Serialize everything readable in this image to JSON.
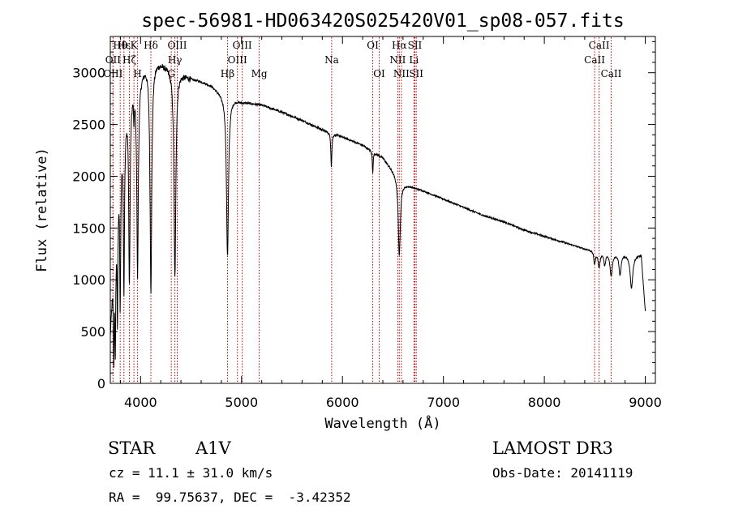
{
  "chart_data": {
    "type": "line",
    "title": "spec-56981-HD063420S025420V01_sp08-057.fits",
    "xlabel": "Wavelength (Å)",
    "ylabel": "Flux (relative)",
    "xlim": [
      3700,
      9100
    ],
    "ylim": [
      0,
      3350
    ],
    "x_ticks": [
      4000,
      5000,
      6000,
      7000,
      8000,
      9000
    ],
    "y_ticks": [
      0,
      500,
      1000,
      1500,
      2000,
      2500,
      3000
    ],
    "line_color": "#000000",
    "marker_color": "#c00000",
    "continuum": [
      [
        3700,
        500
      ],
      [
        3720,
        950
      ],
      [
        3750,
        1450
      ],
      [
        3780,
        2050
      ],
      [
        3820,
        2450
      ],
      [
        3850,
        2650
      ],
      [
        3880,
        2780
      ],
      [
        3920,
        2880
      ],
      [
        3960,
        2950
      ],
      [
        4000,
        3000
      ],
      [
        4050,
        3080
      ],
      [
        4100,
        3100
      ],
      [
        4150,
        3110
      ],
      [
        4200,
        3100
      ],
      [
        4300,
        3050
      ],
      [
        4400,
        3000
      ],
      [
        4500,
        2950
      ],
      [
        4600,
        2920
      ],
      [
        4700,
        2880
      ],
      [
        4800,
        2800
      ],
      [
        4900,
        2760
      ],
      [
        5000,
        2720
      ],
      [
        5200,
        2690
      ],
      [
        5400,
        2620
      ],
      [
        5600,
        2540
      ],
      [
        5800,
        2450
      ],
      [
        6000,
        2380
      ],
      [
        6200,
        2300
      ],
      [
        6400,
        2180
      ],
      [
        6600,
        1930
      ],
      [
        6800,
        1860
      ],
      [
        7000,
        1780
      ],
      [
        7200,
        1700
      ],
      [
        7400,
        1620
      ],
      [
        7600,
        1560
      ],
      [
        7800,
        1480
      ],
      [
        8000,
        1420
      ],
      [
        8200,
        1360
      ],
      [
        8400,
        1300
      ],
      [
        8600,
        1270
      ],
      [
        8800,
        1250
      ],
      [
        8960,
        1240
      ],
      [
        9000,
        700
      ]
    ],
    "absorption_features": [
      {
        "center": 3735,
        "depth": 900,
        "width": 5
      },
      {
        "center": 3750,
        "depth": 1000,
        "width": 5
      },
      {
        "center": 3771,
        "depth": 1200,
        "width": 5
      },
      {
        "center": 3798,
        "depth": 1400,
        "width": 6
      },
      {
        "center": 3835,
        "depth": 1600,
        "width": 7
      },
      {
        "center": 3889,
        "depth": 1800,
        "width": 8
      },
      {
        "center": 3934,
        "depth": 300,
        "width": 3
      },
      {
        "center": 3970,
        "depth": 1900,
        "width": 9
      },
      {
        "center": 4102,
        "depth": 2200,
        "width": 10
      },
      {
        "center": 4340,
        "depth": 2000,
        "width": 11
      },
      {
        "center": 4861,
        "depth": 1550,
        "width": 12
      },
      {
        "center": 5890,
        "depth": 320,
        "width": 6
      },
      {
        "center": 6300,
        "depth": 200,
        "width": 5
      },
      {
        "center": 6563,
        "depth": 750,
        "width": 12
      },
      {
        "center": 8498,
        "depth": 120,
        "width": 10
      },
      {
        "center": 8542,
        "depth": 150,
        "width": 12
      },
      {
        "center": 8598,
        "depth": 120,
        "width": 10
      },
      {
        "center": 8662,
        "depth": 220,
        "width": 14
      },
      {
        "center": 8750,
        "depth": 200,
        "width": 12
      },
      {
        "center": 8863,
        "depth": 320,
        "width": 16
      }
    ],
    "markers": [
      {
        "label": "Hθ",
        "x": 3798,
        "row": 0
      },
      {
        "label": "OII",
        "x": 3727,
        "row": 1
      },
      {
        "label": "OIII",
        "x": 3727,
        "row": 2
      },
      {
        "label": "Hε",
        "x": 3835,
        "row": 0
      },
      {
        "label": "Hζ",
        "x": 3889,
        "row": 1
      },
      {
        "label": "K",
        "x": 3934,
        "row": 0
      },
      {
        "label": "H",
        "x": 3970,
        "row": 2
      },
      {
        "label": "Hδ",
        "x": 4102,
        "row": 0
      },
      {
        "label": "G",
        "x": 4304,
        "row": 2
      },
      {
        "label": "Hγ",
        "x": 4340,
        "row": 1
      },
      {
        "label": "OIII",
        "x": 4363,
        "row": 0
      },
      {
        "label": "Hβ",
        "x": 4861,
        "row": 2
      },
      {
        "label": "OIII",
        "x": 4959,
        "row": 1
      },
      {
        "label": "OIII",
        "x": 5007,
        "row": 0
      },
      {
        "label": "Mg",
        "x": 5175,
        "row": 2
      },
      {
        "label": "Na",
        "x": 5893,
        "row": 1
      },
      {
        "label": "OI",
        "x": 6300,
        "row": 0
      },
      {
        "label": "OI",
        "x": 6364,
        "row": 2
      },
      {
        "label": "NII",
        "x": 6548,
        "row": 1
      },
      {
        "label": "Hα",
        "x": 6563,
        "row": 0
      },
      {
        "label": "NII",
        "x": 6584,
        "row": 2
      },
      {
        "label": "Li",
        "x": 6708,
        "row": 1
      },
      {
        "label": "SII",
        "x": 6717,
        "row": 0
      },
      {
        "label": "SII",
        "x": 6731,
        "row": 2
      },
      {
        "label": "CaII",
        "x": 8498,
        "row": 1
      },
      {
        "label": "CaII",
        "x": 8542,
        "row": 0
      },
      {
        "label": "CaII",
        "x": 8662,
        "row": 2
      }
    ]
  },
  "info": {
    "class_label": "STAR",
    "subclass": "A1V",
    "survey": "LAMOST DR3",
    "cz": "cz = 11.1 ± 31.0 km/s",
    "obs_date": "Obs-Date: 20141119",
    "radec": "RA =  99.75637, DEC =  -3.42352"
  }
}
